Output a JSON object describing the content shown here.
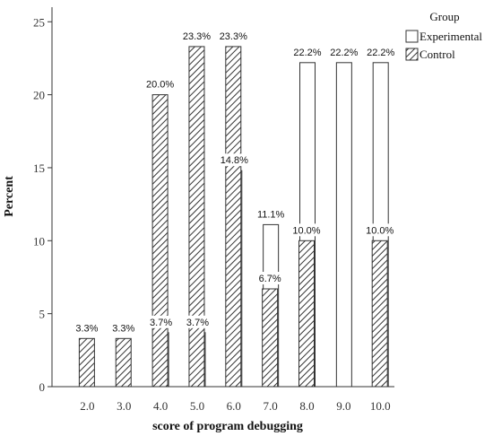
{
  "chart_data": {
    "type": "bar",
    "xlabel": "score of program debugging",
    "ylabel": "Percent",
    "ylim": [
      0,
      26
    ],
    "yticks": [
      0,
      5,
      10,
      15,
      20,
      25
    ],
    "categories": [
      "2.0",
      "3.0",
      "4.0",
      "5.0",
      "6.0",
      "7.0",
      "8.0",
      "9.0",
      "10.0"
    ],
    "legend_title": "Group",
    "legend_position": "top-right",
    "grid": false,
    "series": [
      {
        "name": "Experimental",
        "fill": "plain",
        "values": [
          null,
          null,
          3.7,
          3.7,
          14.8,
          11.1,
          22.2,
          22.2,
          22.2
        ],
        "labels": [
          null,
          null,
          "3.7%",
          "3.7%",
          "14.8%",
          "11.1%",
          "22.2%",
          "22.2%",
          "22.2%"
        ]
      },
      {
        "name": "Control",
        "fill": "hatched",
        "values": [
          3.3,
          3.3,
          20.0,
          23.3,
          23.3,
          6.7,
          10.0,
          null,
          10.0
        ],
        "labels": [
          "3.3%",
          "3.3%",
          "20.0%",
          "23.3%",
          "23.3%",
          "6.7%",
          "10.0%",
          null,
          "10.0%"
        ]
      }
    ]
  },
  "colors": {
    "bar_fill": "#ffffff",
    "bar_stroke": "#333333",
    "hatch": "#333333",
    "axis": "#333333"
  }
}
